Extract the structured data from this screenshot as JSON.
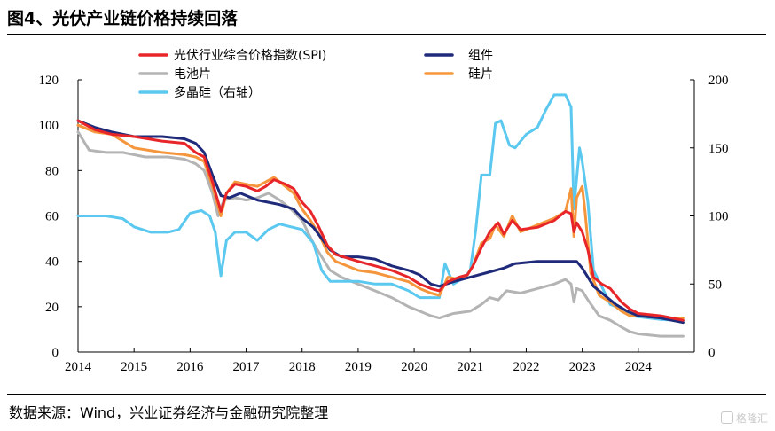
{
  "title": "图4、光伏产业链价格持续回落",
  "source": "数据来源：Wind，兴业证券经济与金融研究院整理",
  "watermark": "格隆汇",
  "chart_data": {
    "type": "line",
    "x_range": [
      2014,
      2025
    ],
    "x_ticks": [
      "2014",
      "2015",
      "2016",
      "2017",
      "2018",
      "2019",
      "2020",
      "2021",
      "2022",
      "2023",
      "2024"
    ],
    "y_left": {
      "range": [
        0,
        120
      ],
      "ticks": [
        "0",
        "20",
        "40",
        "60",
        "80",
        "100",
        "120"
      ]
    },
    "y_right": {
      "range": [
        0,
        200
      ],
      "ticks": [
        "0",
        "50",
        "100",
        "150",
        "200"
      ]
    },
    "grid": false,
    "legend": "top",
    "series": [
      {
        "name": "光伏行业综合价格指数(SPI)",
        "axis": "left",
        "color": "#e8262a",
        "points": [
          [
            2014.0,
            102
          ],
          [
            2014.3,
            98
          ],
          [
            2014.6,
            96
          ],
          [
            2015.0,
            95
          ],
          [
            2015.5,
            93
          ],
          [
            2015.9,
            92
          ],
          [
            2016.1,
            88
          ],
          [
            2016.25,
            86
          ],
          [
            2016.4,
            75
          ],
          [
            2016.55,
            62
          ],
          [
            2016.65,
            70
          ],
          [
            2016.8,
            74
          ],
          [
            2017.0,
            73
          ],
          [
            2017.2,
            71
          ],
          [
            2017.35,
            73
          ],
          [
            2017.5,
            76
          ],
          [
            2017.7,
            74
          ],
          [
            2017.85,
            72
          ],
          [
            2018.0,
            66
          ],
          [
            2018.15,
            62
          ],
          [
            2018.3,
            55
          ],
          [
            2018.45,
            47
          ],
          [
            2018.6,
            43
          ],
          [
            2019.0,
            40
          ],
          [
            2019.3,
            38
          ],
          [
            2019.6,
            36
          ],
          [
            2019.9,
            33
          ],
          [
            2020.1,
            30
          ],
          [
            2020.3,
            28
          ],
          [
            2020.45,
            27
          ],
          [
            2020.6,
            31
          ],
          [
            2020.8,
            33
          ],
          [
            2020.95,
            34
          ],
          [
            2021.05,
            38
          ],
          [
            2021.2,
            46
          ],
          [
            2021.35,
            53
          ],
          [
            2021.5,
            57
          ],
          [
            2021.6,
            52
          ],
          [
            2021.75,
            58
          ],
          [
            2021.9,
            54
          ],
          [
            2022.2,
            55
          ],
          [
            2022.5,
            58
          ],
          [
            2022.7,
            62
          ],
          [
            2022.8,
            61
          ],
          [
            2022.85,
            53
          ],
          [
            2022.9,
            57
          ],
          [
            2023.0,
            53
          ],
          [
            2023.1,
            45
          ],
          [
            2023.2,
            33
          ],
          [
            2023.35,
            30
          ],
          [
            2023.5,
            28
          ],
          [
            2023.7,
            22
          ],
          [
            2023.85,
            19
          ],
          [
            2024.0,
            17
          ],
          [
            2024.4,
            16
          ],
          [
            2024.8,
            14
          ]
        ]
      },
      {
        "name": "组件",
        "axis": "left",
        "color": "#1f2a7a",
        "points": [
          [
            2014.0,
            102
          ],
          [
            2014.3,
            99
          ],
          [
            2014.6,
            97
          ],
          [
            2015.0,
            95
          ],
          [
            2015.5,
            95
          ],
          [
            2015.9,
            94
          ],
          [
            2016.1,
            92
          ],
          [
            2016.25,
            88
          ],
          [
            2016.4,
            78
          ],
          [
            2016.55,
            69
          ],
          [
            2016.7,
            68
          ],
          [
            2016.9,
            70
          ],
          [
            2017.2,
            67
          ],
          [
            2017.4,
            66
          ],
          [
            2017.6,
            65
          ],
          [
            2017.85,
            63
          ],
          [
            2018.0,
            59
          ],
          [
            2018.2,
            55
          ],
          [
            2018.35,
            50
          ],
          [
            2018.5,
            45
          ],
          [
            2018.7,
            42
          ],
          [
            2019.0,
            42
          ],
          [
            2019.3,
            41
          ],
          [
            2019.6,
            38
          ],
          [
            2019.9,
            36
          ],
          [
            2020.1,
            34
          ],
          [
            2020.3,
            30
          ],
          [
            2020.45,
            29
          ],
          [
            2020.7,
            31
          ],
          [
            2021.0,
            33
          ],
          [
            2021.3,
            35
          ],
          [
            2021.6,
            37
          ],
          [
            2021.8,
            39
          ],
          [
            2022.2,
            40
          ],
          [
            2022.6,
            40
          ],
          [
            2022.9,
            40
          ],
          [
            2023.0,
            37
          ],
          [
            2023.2,
            29
          ],
          [
            2023.4,
            25
          ],
          [
            2023.6,
            21
          ],
          [
            2023.8,
            18
          ],
          [
            2024.0,
            16
          ],
          [
            2024.4,
            15
          ],
          [
            2024.8,
            13
          ]
        ]
      },
      {
        "name": "电池片",
        "axis": "left",
        "color": "#b4b4b4",
        "points": [
          [
            2014.0,
            97
          ],
          [
            2014.2,
            89
          ],
          [
            2014.5,
            88
          ],
          [
            2014.8,
            88
          ],
          [
            2015.2,
            86
          ],
          [
            2015.6,
            86
          ],
          [
            2015.9,
            85
          ],
          [
            2016.1,
            83
          ],
          [
            2016.25,
            80
          ],
          [
            2016.4,
            70
          ],
          [
            2016.5,
            60
          ],
          [
            2016.6,
            67
          ],
          [
            2016.8,
            68
          ],
          [
            2017.0,
            67
          ],
          [
            2017.2,
            68
          ],
          [
            2017.4,
            70
          ],
          [
            2017.6,
            67
          ],
          [
            2017.8,
            63
          ],
          [
            2018.0,
            58
          ],
          [
            2018.2,
            48
          ],
          [
            2018.35,
            42
          ],
          [
            2018.5,
            36
          ],
          [
            2018.7,
            33
          ],
          [
            2019.0,
            30
          ],
          [
            2019.3,
            27
          ],
          [
            2019.6,
            24
          ],
          [
            2019.9,
            20
          ],
          [
            2020.1,
            18
          ],
          [
            2020.3,
            16
          ],
          [
            2020.45,
            15
          ],
          [
            2020.7,
            17
          ],
          [
            2021.0,
            18
          ],
          [
            2021.2,
            21
          ],
          [
            2021.35,
            24
          ],
          [
            2021.5,
            23
          ],
          [
            2021.65,
            27
          ],
          [
            2021.9,
            26
          ],
          [
            2022.2,
            28
          ],
          [
            2022.5,
            30
          ],
          [
            2022.7,
            32
          ],
          [
            2022.8,
            30
          ],
          [
            2022.85,
            22
          ],
          [
            2022.9,
            28
          ],
          [
            2023.0,
            27
          ],
          [
            2023.1,
            23
          ],
          [
            2023.3,
            16
          ],
          [
            2023.5,
            14
          ],
          [
            2023.7,
            11
          ],
          [
            2023.85,
            9
          ],
          [
            2024.0,
            8
          ],
          [
            2024.4,
            7
          ],
          [
            2024.8,
            7
          ]
        ]
      },
      {
        "name": "硅片",
        "axis": "left",
        "color": "#f5963c",
        "points": [
          [
            2014.0,
            100
          ],
          [
            2014.3,
            97
          ],
          [
            2014.6,
            96
          ],
          [
            2015.0,
            90
          ],
          [
            2015.5,
            88
          ],
          [
            2015.9,
            87
          ],
          [
            2016.1,
            86
          ],
          [
            2016.25,
            84
          ],
          [
            2016.4,
            73
          ],
          [
            2016.55,
            60
          ],
          [
            2016.65,
            70
          ],
          [
            2016.8,
            75
          ],
          [
            2017.0,
            74
          ],
          [
            2017.2,
            73
          ],
          [
            2017.35,
            75
          ],
          [
            2017.5,
            77
          ],
          [
            2017.7,
            73
          ],
          [
            2017.85,
            70
          ],
          [
            2018.0,
            63
          ],
          [
            2018.15,
            58
          ],
          [
            2018.3,
            52
          ],
          [
            2018.45,
            44
          ],
          [
            2018.6,
            40
          ],
          [
            2019.0,
            36
          ],
          [
            2019.3,
            35
          ],
          [
            2019.6,
            33
          ],
          [
            2019.9,
            31
          ],
          [
            2020.1,
            28
          ],
          [
            2020.3,
            26
          ],
          [
            2020.45,
            25
          ],
          [
            2020.6,
            33
          ],
          [
            2020.8,
            32
          ],
          [
            2020.95,
            34
          ],
          [
            2021.05,
            38
          ],
          [
            2021.2,
            48
          ],
          [
            2021.35,
            50
          ],
          [
            2021.45,
            56
          ],
          [
            2021.6,
            51
          ],
          [
            2021.75,
            60
          ],
          [
            2021.9,
            53
          ],
          [
            2022.2,
            56
          ],
          [
            2022.5,
            59
          ],
          [
            2022.7,
            62
          ],
          [
            2022.8,
            72
          ],
          [
            2022.85,
            51
          ],
          [
            2022.9,
            68
          ],
          [
            2023.0,
            73
          ],
          [
            2023.05,
            62
          ],
          [
            2023.15,
            35
          ],
          [
            2023.3,
            25
          ],
          [
            2023.5,
            22
          ],
          [
            2023.7,
            18
          ],
          [
            2023.85,
            16
          ],
          [
            2024.0,
            16
          ],
          [
            2024.4,
            15
          ],
          [
            2024.8,
            15
          ]
        ]
      },
      {
        "name": "多晶硅（右轴）",
        "axis": "right",
        "color": "#5bc8ef",
        "points": [
          [
            2014.0,
            100
          ],
          [
            2014.5,
            100
          ],
          [
            2014.8,
            98
          ],
          [
            2015.0,
            92
          ],
          [
            2015.3,
            88
          ],
          [
            2015.6,
            88
          ],
          [
            2015.8,
            90
          ],
          [
            2016.0,
            102
          ],
          [
            2016.2,
            104
          ],
          [
            2016.35,
            100
          ],
          [
            2016.45,
            88
          ],
          [
            2016.55,
            56
          ],
          [
            2016.65,
            82
          ],
          [
            2016.8,
            88
          ],
          [
            2017.0,
            88
          ],
          [
            2017.2,
            82
          ],
          [
            2017.4,
            90
          ],
          [
            2017.6,
            94
          ],
          [
            2017.8,
            92
          ],
          [
            2018.0,
            90
          ],
          [
            2018.2,
            80
          ],
          [
            2018.35,
            60
          ],
          [
            2018.5,
            52
          ],
          [
            2018.7,
            52
          ],
          [
            2019.0,
            52
          ],
          [
            2019.3,
            50
          ],
          [
            2019.6,
            50
          ],
          [
            2019.9,
            45
          ],
          [
            2020.1,
            40
          ],
          [
            2020.3,
            40
          ],
          [
            2020.45,
            40
          ],
          [
            2020.55,
            65
          ],
          [
            2020.7,
            50
          ],
          [
            2020.9,
            55
          ],
          [
            2021.0,
            60
          ],
          [
            2021.1,
            90
          ],
          [
            2021.2,
            130
          ],
          [
            2021.35,
            130
          ],
          [
            2021.45,
            168
          ],
          [
            2021.55,
            170
          ],
          [
            2021.7,
            152
          ],
          [
            2021.8,
            150
          ],
          [
            2022.0,
            160
          ],
          [
            2022.2,
            165
          ],
          [
            2022.35,
            178
          ],
          [
            2022.5,
            189
          ],
          [
            2022.7,
            189
          ],
          [
            2022.8,
            180
          ],
          [
            2022.85,
            105
          ],
          [
            2022.95,
            150
          ],
          [
            2023.0,
            140
          ],
          [
            2023.1,
            110
          ],
          [
            2023.2,
            60
          ],
          [
            2023.35,
            48
          ],
          [
            2023.5,
            35
          ],
          [
            2023.7,
            32
          ],
          [
            2023.85,
            27
          ],
          [
            2024.0,
            26
          ],
          [
            2024.4,
            24
          ],
          [
            2024.8,
            23
          ]
        ]
      }
    ]
  }
}
